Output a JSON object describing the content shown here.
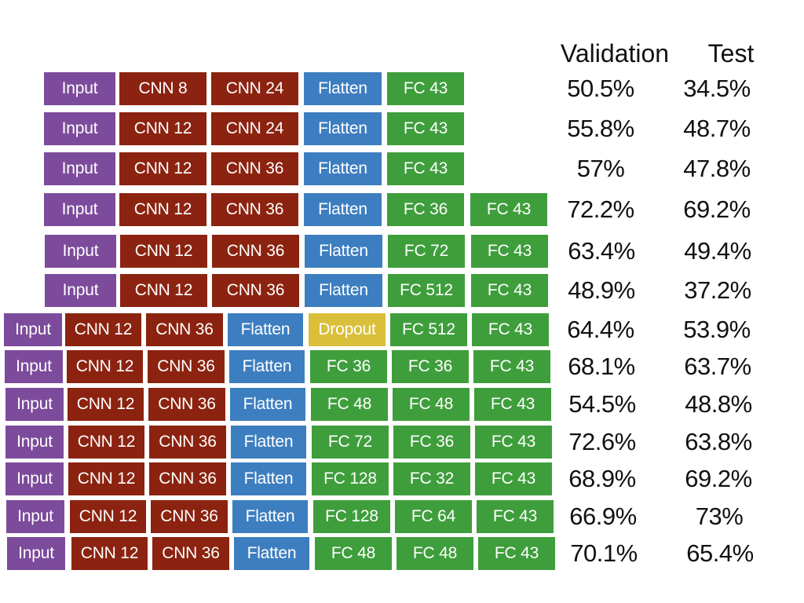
{
  "headers": {
    "validation": "Validation",
    "test": "Test"
  },
  "colors": {
    "input": "#7c4b9b",
    "cnn": "#8b2310",
    "flatten": "#3d7ec0",
    "fc": "#3f9e3c",
    "dropout": "#d9bf3a"
  },
  "rows": [
    {
      "layers": [
        {
          "label": "Input",
          "type": "input"
        },
        {
          "label": "CNN 8",
          "type": "cnn"
        },
        {
          "label": "CNN 24",
          "type": "cnn"
        },
        {
          "label": "Flatten",
          "type": "flatten"
        },
        {
          "label": "FC 43",
          "type": "fc"
        }
      ],
      "validation": "50.5%",
      "test": "34.5%"
    },
    {
      "layers": [
        {
          "label": "Input",
          "type": "input"
        },
        {
          "label": "CNN 12",
          "type": "cnn"
        },
        {
          "label": "CNN 24",
          "type": "cnn"
        },
        {
          "label": "Flatten",
          "type": "flatten"
        },
        {
          "label": "FC 43",
          "type": "fc"
        }
      ],
      "validation": "55.8%",
      "test": "48.7%"
    },
    {
      "layers": [
        {
          "label": "Input",
          "type": "input"
        },
        {
          "label": "CNN 12",
          "type": "cnn"
        },
        {
          "label": "CNN 36",
          "type": "cnn"
        },
        {
          "label": "Flatten",
          "type": "flatten"
        },
        {
          "label": "FC 43",
          "type": "fc"
        }
      ],
      "validation": "57%",
      "test": "47.8%"
    },
    {
      "layers": [
        {
          "label": "Input",
          "type": "input"
        },
        {
          "label": "CNN 12",
          "type": "cnn"
        },
        {
          "label": "CNN 36",
          "type": "cnn"
        },
        {
          "label": "Flatten",
          "type": "flatten"
        },
        {
          "label": "FC 36",
          "type": "fc"
        },
        {
          "label": "FC 43",
          "type": "fc"
        }
      ],
      "validation": "72.2%",
      "test": "69.2%"
    },
    {
      "layers": [
        {
          "label": "Input",
          "type": "input"
        },
        {
          "label": "CNN 12",
          "type": "cnn"
        },
        {
          "label": "CNN 36",
          "type": "cnn"
        },
        {
          "label": "Flatten",
          "type": "flatten"
        },
        {
          "label": "FC 72",
          "type": "fc"
        },
        {
          "label": "FC 43",
          "type": "fc"
        }
      ],
      "validation": "63.4%",
      "test": "49.4%"
    },
    {
      "layers": [
        {
          "label": "Input",
          "type": "input"
        },
        {
          "label": "CNN 12",
          "type": "cnn"
        },
        {
          "label": "CNN 36",
          "type": "cnn"
        },
        {
          "label": "Flatten",
          "type": "flatten"
        },
        {
          "label": "FC 512",
          "type": "fc"
        },
        {
          "label": "FC 43",
          "type": "fc"
        }
      ],
      "validation": "48.9%",
      "test": "37.2%"
    },
    {
      "layers": [
        {
          "label": "Input",
          "type": "input"
        },
        {
          "label": "CNN 12",
          "type": "cnn"
        },
        {
          "label": "CNN 36",
          "type": "cnn"
        },
        {
          "label": "Flatten",
          "type": "flatten"
        },
        {
          "label": "Dropout",
          "type": "dropout"
        },
        {
          "label": "FC 512",
          "type": "fc"
        },
        {
          "label": "FC 43",
          "type": "fc"
        }
      ],
      "validation": "64.4%",
      "test": "53.9%"
    },
    {
      "layers": [
        {
          "label": "Input",
          "type": "input"
        },
        {
          "label": "CNN 12",
          "type": "cnn"
        },
        {
          "label": "CNN 36",
          "type": "cnn"
        },
        {
          "label": "Flatten",
          "type": "flatten"
        },
        {
          "label": "FC 36",
          "type": "fc"
        },
        {
          "label": "FC 36",
          "type": "fc"
        },
        {
          "label": "FC 43",
          "type": "fc"
        }
      ],
      "validation": "68.1%",
      "test": "63.7%"
    },
    {
      "layers": [
        {
          "label": "Input",
          "type": "input"
        },
        {
          "label": "CNN 12",
          "type": "cnn"
        },
        {
          "label": "CNN 36",
          "type": "cnn"
        },
        {
          "label": "Flatten",
          "type": "flatten"
        },
        {
          "label": "FC 48",
          "type": "fc"
        },
        {
          "label": "FC 48",
          "type": "fc"
        },
        {
          "label": "FC 43",
          "type": "fc"
        }
      ],
      "validation": "54.5%",
      "test": "48.8%"
    },
    {
      "layers": [
        {
          "label": "Input",
          "type": "input"
        },
        {
          "label": "CNN 12",
          "type": "cnn"
        },
        {
          "label": "CNN 36",
          "type": "cnn"
        },
        {
          "label": "Flatten",
          "type": "flatten"
        },
        {
          "label": "FC 72",
          "type": "fc"
        },
        {
          "label": "FC 36",
          "type": "fc"
        },
        {
          "label": "FC 43",
          "type": "fc"
        }
      ],
      "validation": "72.6%",
      "test": "63.8%"
    },
    {
      "layers": [
        {
          "label": "Input",
          "type": "input"
        },
        {
          "label": "CNN 12",
          "type": "cnn"
        },
        {
          "label": "CNN 36",
          "type": "cnn"
        },
        {
          "label": "Flatten",
          "type": "flatten"
        },
        {
          "label": "FC 128",
          "type": "fc"
        },
        {
          "label": "FC 32",
          "type": "fc"
        },
        {
          "label": "FC 43",
          "type": "fc"
        }
      ],
      "validation": "68.9%",
      "test": "69.2%"
    },
    {
      "layers": [
        {
          "label": "Input",
          "type": "input"
        },
        {
          "label": "CNN 12",
          "type": "cnn"
        },
        {
          "label": "CNN 36",
          "type": "cnn"
        },
        {
          "label": "Flatten",
          "type": "flatten"
        },
        {
          "label": "FC 128",
          "type": "fc"
        },
        {
          "label": "FC 64",
          "type": "fc"
        },
        {
          "label": "FC 43",
          "type": "fc"
        }
      ],
      "validation": "66.9%",
      "test": "73%"
    },
    {
      "layers": [
        {
          "label": "Input",
          "type": "input"
        },
        {
          "label": "CNN 12",
          "type": "cnn"
        },
        {
          "label": "CNN 36",
          "type": "cnn"
        },
        {
          "label": "Flatten",
          "type": "flatten"
        },
        {
          "label": "FC 48",
          "type": "fc"
        },
        {
          "label": "FC 48",
          "type": "fc"
        },
        {
          "label": "FC 43",
          "type": "fc"
        }
      ],
      "validation": "70.1%",
      "test": "65.4%"
    }
  ]
}
